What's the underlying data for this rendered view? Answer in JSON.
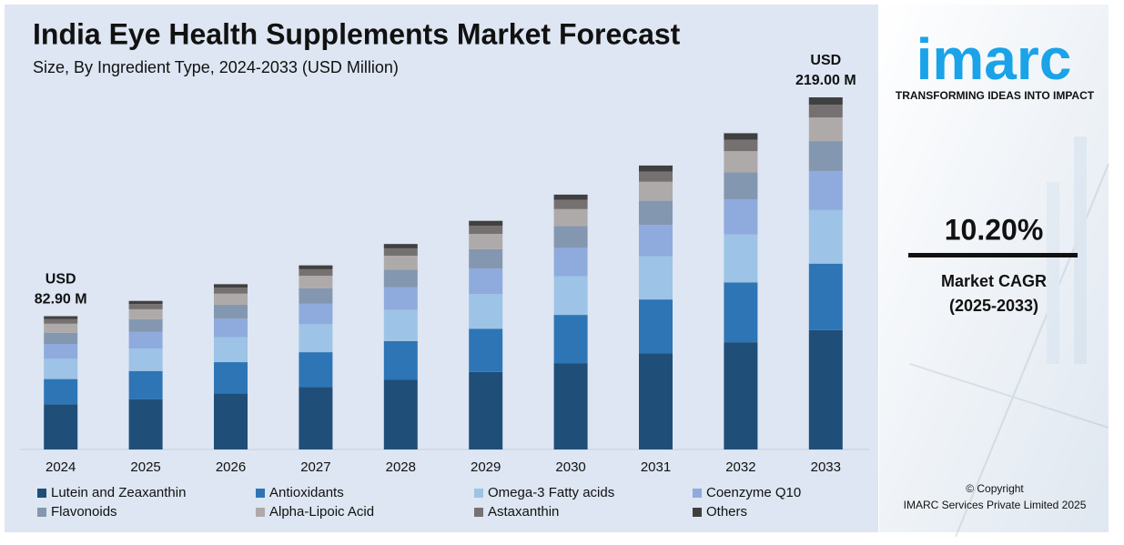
{
  "chart_data": {
    "type": "stacked_bar",
    "title": "India Eye Health Supplements Market Forecast",
    "subtitle": "Size, By Ingredient Type, 2024-2033 (USD Million)",
    "categories": [
      "2024",
      "2025",
      "2026",
      "2027",
      "2028",
      "2029",
      "2030",
      "2031",
      "2032",
      "2033"
    ],
    "series": [
      {
        "name": "Lutein and Zeaxanthin",
        "color": "#1f4e79",
        "values": [
          28.1,
          31.3,
          34.9,
          38.8,
          43.3,
          48.2,
          53.7,
          59.9,
          66.7,
          74.2
        ]
      },
      {
        "name": "Antioxidants",
        "color": "#2e75b6",
        "values": [
          15.7,
          17.5,
          19.4,
          21.7,
          24.1,
          26.9,
          30.0,
          33.4,
          37.2,
          41.4
        ]
      },
      {
        "name": "Omega-3 Fatty acids",
        "color": "#9dc3e6",
        "values": [
          12.6,
          14.0,
          15.6,
          17.4,
          19.4,
          21.6,
          24.1,
          26.8,
          29.9,
          33.3
        ]
      },
      {
        "name": "Coenzyme Q10",
        "color": "#8faadc",
        "values": [
          9.2,
          10.3,
          11.4,
          12.7,
          14.2,
          15.8,
          17.6,
          19.6,
          21.8,
          24.3
        ]
      },
      {
        "name": "Flavonoids",
        "color": "#8497b0",
        "values": [
          7.0,
          7.9,
          8.7,
          9.7,
          10.9,
          12.1,
          13.5,
          15.0,
          16.7,
          18.6
        ]
      },
      {
        "name": "Alpha-Lipoic Acid",
        "color": "#aeaaaa",
        "values": [
          5.6,
          6.2,
          6.9,
          7.7,
          8.6,
          9.5,
          10.6,
          11.8,
          13.2,
          14.7
        ]
      },
      {
        "name": "Astaxanthin",
        "color": "#767171",
        "values": [
          3.0,
          3.3,
          3.7,
          4.1,
          4.6,
          5.1,
          5.7,
          6.4,
          7.1,
          7.9
        ]
      },
      {
        "name": "Others",
        "color": "#404040",
        "values": [
          1.7,
          1.9,
          2.2,
          2.4,
          2.7,
          3.0,
          3.3,
          3.7,
          4.1,
          4.6
        ]
      }
    ],
    "total_labels": [
      {
        "category": "2024",
        "lines": [
          "USD",
          "82.90 M"
        ]
      },
      {
        "category": "2033",
        "lines": [
          "USD",
          "219.00 M"
        ]
      }
    ]
  },
  "side_panel": {
    "logo": "imarc",
    "tagline": "TRANSFORMING IDEAS INTO IMPACT",
    "cagr": "10.20%",
    "cagr_label": "Market CAGR",
    "cagr_period": "(2025-2033)",
    "copyright": "© Copyright",
    "company": "IMARC Services Private Limited 2025"
  }
}
